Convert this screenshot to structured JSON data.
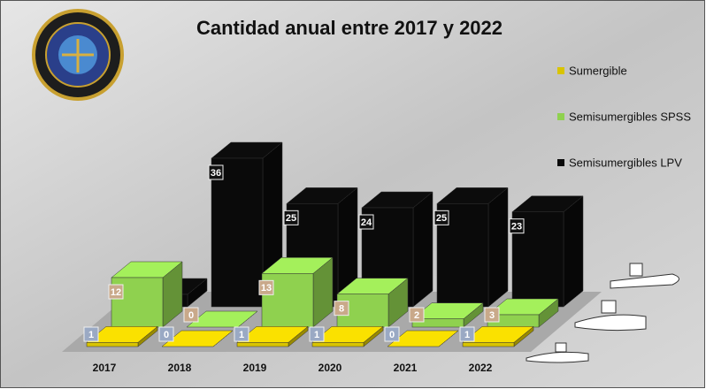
{
  "chart_data": {
    "type": "bar3d",
    "title": "Cantidad anual entre 2017 y 2022",
    "categories": [
      "2017",
      "2018",
      "2019",
      "2020",
      "2021",
      "2022"
    ],
    "series": [
      {
        "name": "Sumergible",
        "color": "#d9c400",
        "values": [
          1,
          0,
          1,
          1,
          0,
          1
        ]
      },
      {
        "name": "Semisumergibles SPSS",
        "color": "#8fd14f",
        "values": [
          12,
          0,
          13,
          8,
          2,
          3
        ]
      },
      {
        "name": "Semisumergibles LPV",
        "color": "#0a0a0a",
        "values": [
          3,
          36,
          25,
          24,
          25,
          23
        ]
      }
    ]
  }
}
